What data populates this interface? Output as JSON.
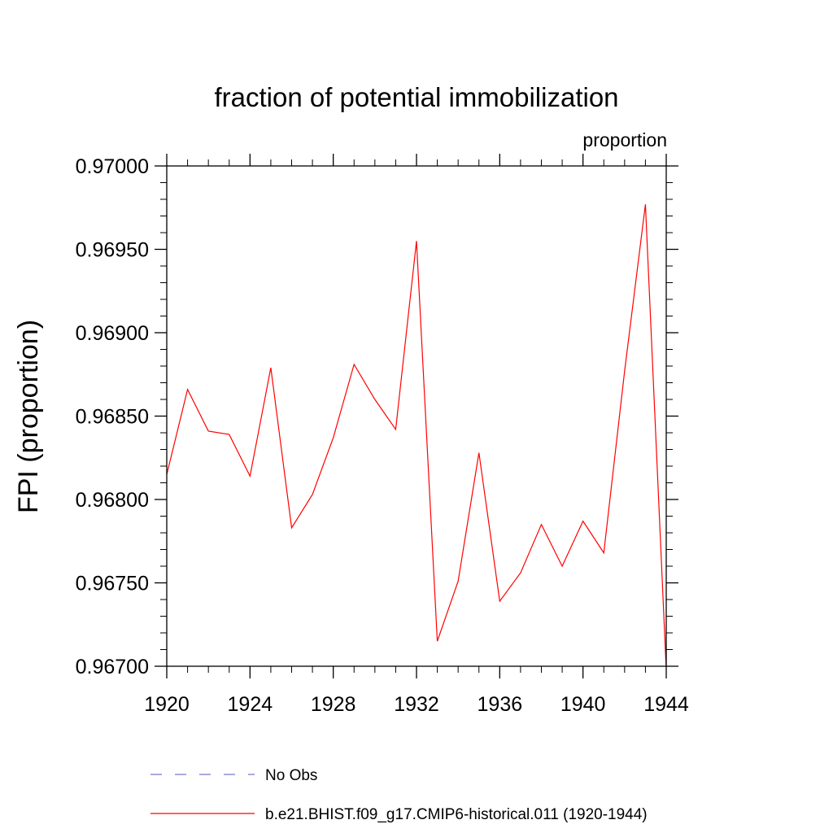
{
  "chart_data": {
    "type": "line",
    "title": "fraction of potential immobilization",
    "units_label": "proportion",
    "ylabel": "FPI  (proportion)",
    "xlabel": "",
    "xlim": [
      1920,
      1944
    ],
    "ylim": [
      0.967,
      0.97
    ],
    "x_ticks": [
      "1920",
      "1924",
      "1928",
      "1932",
      "1936",
      "1940",
      "1944"
    ],
    "y_ticks": [
      "0.96700",
      "0.96750",
      "0.96800",
      "0.96850",
      "0.96900",
      "0.96950",
      "0.97000"
    ],
    "grid": false,
    "series": [
      {
        "name": "No Obs",
        "color": "#7777cc",
        "style": "dashed",
        "x": [],
        "values": []
      },
      {
        "name": "b.e21.BHIST.f09_g17.CMIP6-historical.011 (1920-1944)",
        "color": "#ff0000",
        "style": "solid",
        "x": [
          1920,
          1921,
          1922,
          1923,
          1924,
          1925,
          1926,
          1927,
          1928,
          1929,
          1930,
          1931,
          1932,
          1933,
          1934,
          1935,
          1936,
          1937,
          1938,
          1939,
          1940,
          1941,
          1942,
          1943,
          1944
        ],
        "values": [
          0.96815,
          0.96866,
          0.96841,
          0.96839,
          0.96814,
          0.96879,
          0.96783,
          0.96803,
          0.96837,
          0.96881,
          0.9686,
          0.96842,
          0.96955,
          0.96715,
          0.96751,
          0.96828,
          0.96739,
          0.96756,
          0.96785,
          0.9676,
          0.96787,
          0.96768,
          0.96877,
          0.96977,
          0.96698
        ]
      }
    ]
  }
}
